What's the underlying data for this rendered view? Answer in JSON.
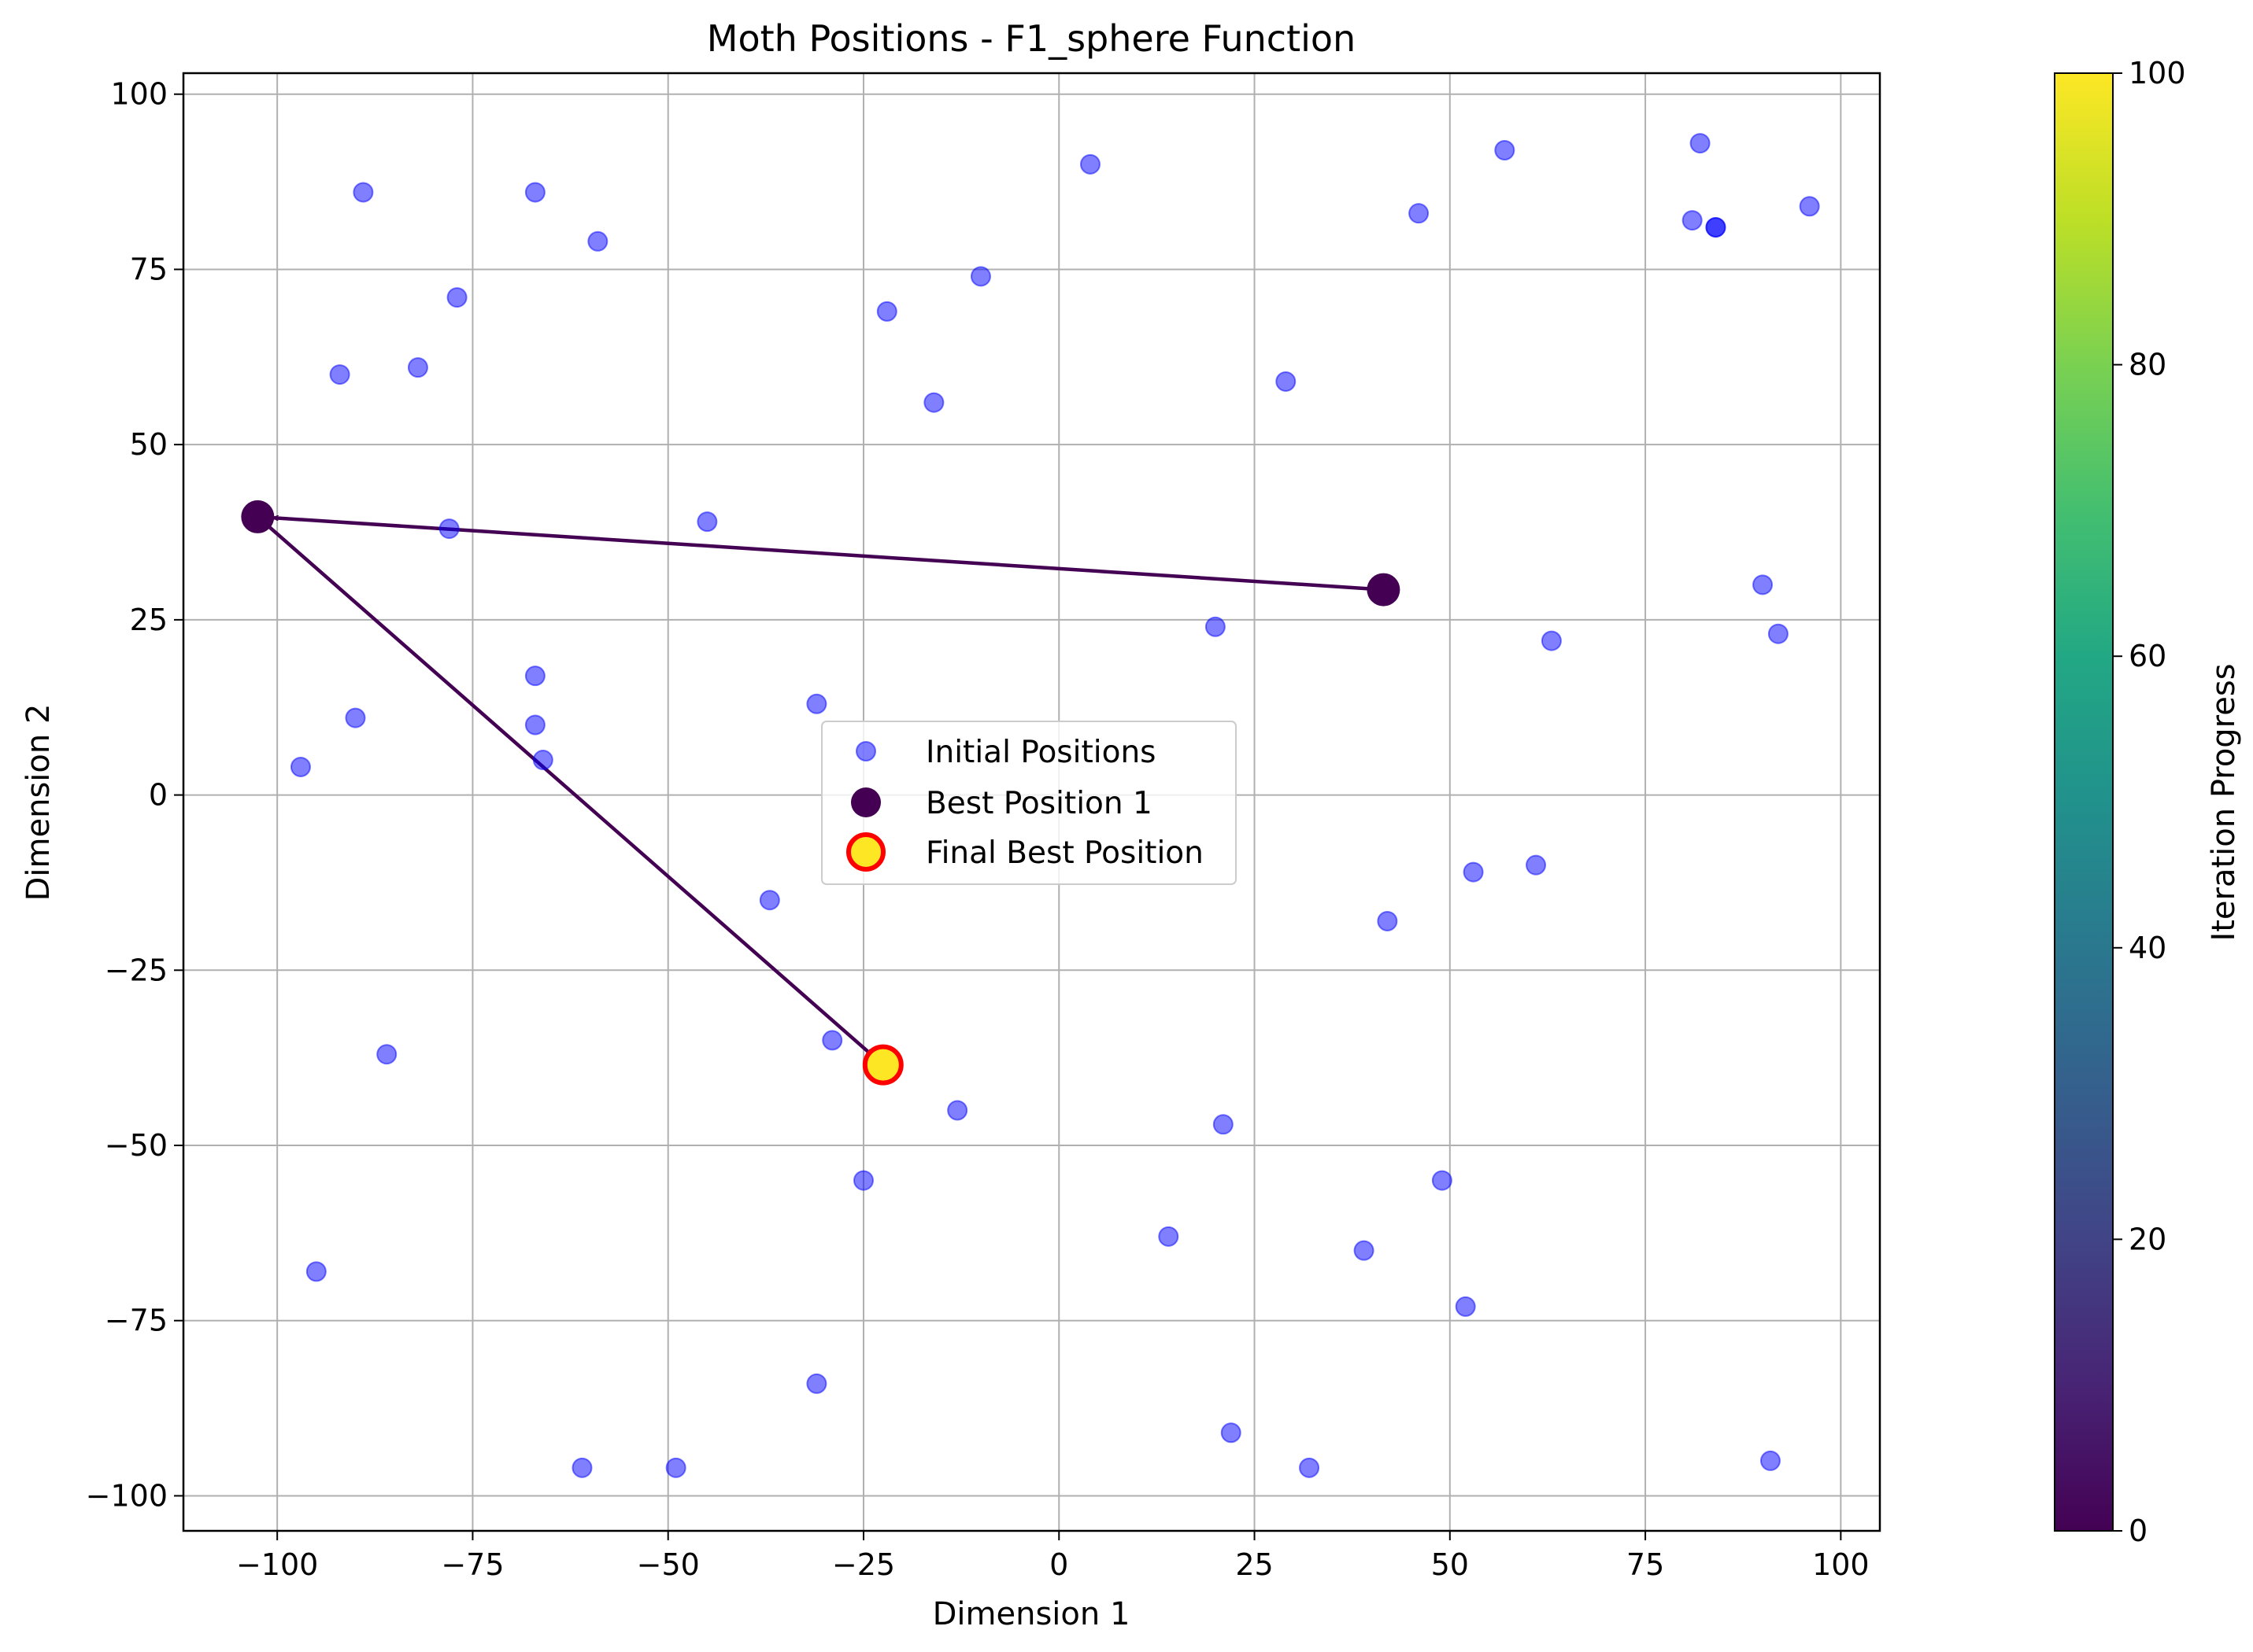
{
  "chart_data": {
    "type": "scatter",
    "title": "Moth Positions - F1_sphere Function",
    "xlabel": "Dimension 1",
    "ylabel": "Dimension 2",
    "xlim": [
      -112,
      105
    ],
    "ylim": [
      -105,
      103
    ],
    "xticks": [
      -100,
      -75,
      -50,
      -25,
      0,
      25,
      50,
      75,
      100
    ],
    "yticks": [
      -100,
      -75,
      -50,
      -25,
      0,
      25,
      50,
      75,
      100
    ],
    "grid": true,
    "legend_position": "center",
    "series": [
      {
        "name": "Initial Positions",
        "marker": "circle",
        "color": "#0000ff",
        "alpha": 0.5,
        "points": [
          [
            -89,
            86
          ],
          [
            -67,
            86
          ],
          [
            -59,
            79
          ],
          [
            4,
            90
          ],
          [
            46,
            83
          ],
          [
            57,
            92
          ],
          [
            82,
            93
          ],
          [
            81,
            82
          ],
          [
            84,
            81
          ],
          [
            84,
            81
          ],
          [
            96,
            84
          ],
          [
            -77,
            71
          ],
          [
            -82,
            61
          ],
          [
            -92,
            60
          ],
          [
            -22,
            69
          ],
          [
            -10,
            74
          ],
          [
            -16,
            56
          ],
          [
            29,
            59
          ],
          [
            -78,
            38
          ],
          [
            -45,
            39
          ],
          [
            90,
            30
          ],
          [
            92,
            23
          ],
          [
            63,
            22
          ],
          [
            20,
            24
          ],
          [
            -67,
            17
          ],
          [
            -67,
            10
          ],
          [
            -66,
            5
          ],
          [
            -31,
            13
          ],
          [
            -90,
            11
          ],
          [
            -97,
            4
          ],
          [
            53,
            -11
          ],
          [
            61,
            -10
          ],
          [
            42,
            -18
          ],
          [
            -37,
            -15
          ],
          [
            -86,
            -37
          ],
          [
            -29,
            -35
          ],
          [
            -13,
            -45
          ],
          [
            21,
            -47
          ],
          [
            -25,
            -55
          ],
          [
            49,
            -55
          ],
          [
            14,
            -63
          ],
          [
            39,
            -65
          ],
          [
            -95,
            -68
          ],
          [
            52,
            -73
          ],
          [
            -31,
            -84
          ],
          [
            22,
            -91
          ],
          [
            -61,
            -96
          ],
          [
            -49,
            -96
          ],
          [
            32,
            -96
          ],
          [
            91,
            -95
          ]
        ]
      },
      {
        "name": "Best Position 1",
        "marker": "circle",
        "color": "#440154",
        "points": [
          [
            41.5,
            29.3
          ],
          [
            -102.5,
            39.7
          ]
        ]
      },
      {
        "name": "Final Best Position",
        "marker": "circle",
        "color": "#fde725",
        "edgecolor": "#ff0000",
        "points": [
          [
            -22.5,
            -38.5
          ]
        ]
      }
    ],
    "path": {
      "color": "#440154",
      "points": [
        [
          41.5,
          29.3
        ],
        [
          -102.5,
          39.7
        ],
        [
          -22.5,
          -38.5
        ]
      ]
    },
    "colorbar": {
      "label": "Iteration Progress",
      "colormap": "viridis",
      "range": [
        0,
        100
      ],
      "ticks": [
        0,
        20,
        40,
        60,
        80,
        100
      ]
    }
  }
}
